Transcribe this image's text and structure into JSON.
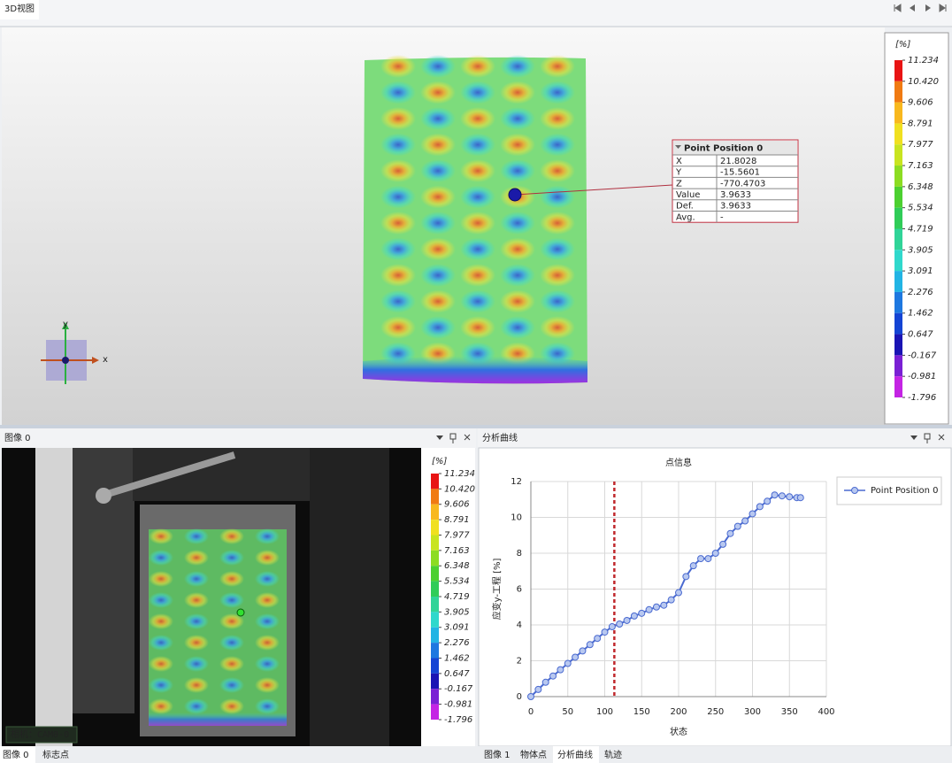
{
  "window": {
    "tab_3d": "3D视图"
  },
  "view3d": {
    "axis_labels": {
      "x": "x",
      "y": "y"
    },
    "probe": {
      "title": "Point Position 0",
      "rows": [
        [
          "X",
          "21.8028"
        ],
        [
          "Y",
          "-15.5601"
        ],
        [
          "Z",
          "-770.4703"
        ],
        [
          "Value",
          "3.9633"
        ],
        [
          "Def.",
          "3.9633"
        ],
        [
          "Avg.",
          "-"
        ]
      ]
    }
  },
  "colorbar": {
    "unit": "[%]",
    "ticks": [
      11.234,
      {
        "value": 10.42,
        "label": "10.420"
      },
      9.606,
      8.791,
      7.977,
      7.163,
      6.348,
      5.534,
      4.719,
      3.905,
      3.091,
      2.276,
      1.462,
      0.647,
      -0.167,
      -0.981,
      -1.796
    ],
    "colors": [
      "#e81414",
      "#f07a12",
      "#f8b81e",
      "#f0e020",
      "#c8e420",
      "#8cdc22",
      "#4cd030",
      "#30cc58",
      "#30d498",
      "#30d8cc",
      "#22b4e4",
      "#1e78e0",
      "#1444d4",
      "#1a14b4",
      "#7a20d4",
      "#c424e4"
    ]
  },
  "image_panel": {
    "title": "图像 0",
    "camera_label": "相机：CAM0-0",
    "tabs": [
      "图像 0",
      "标志点"
    ]
  },
  "chart_panel": {
    "title": "分析曲线",
    "tabs": [
      "图像 1",
      "物体点",
      "分析曲线",
      "轨迹"
    ]
  },
  "chart_data": {
    "type": "line",
    "title": "点信息",
    "x_label": "状态",
    "y_label": "应变y-工程 [%]",
    "x": [
      0,
      10,
      20,
      30,
      40,
      50,
      60,
      70,
      80,
      90,
      100,
      110,
      120,
      130,
      140,
      150,
      160,
      170,
      180,
      190,
      200,
      210,
      220,
      230,
      240,
      250,
      260,
      270,
      280,
      290,
      300,
      310,
      320,
      330,
      340,
      350,
      360,
      365
    ],
    "series": [
      {
        "name": "Point Position 0",
        "color": "#4a6ad0",
        "values": [
          0,
          0.4,
          0.8,
          1.15,
          1.5,
          1.85,
          2.2,
          2.55,
          2.9,
          3.25,
          3.6,
          3.9,
          4.05,
          4.25,
          4.5,
          4.65,
          4.85,
          5.0,
          5.1,
          5.4,
          5.8,
          6.7,
          7.3,
          7.7,
          7.7,
          8.0,
          8.5,
          9.1,
          9.5,
          9.8,
          10.2,
          10.6,
          10.9,
          11.25,
          11.2,
          11.15,
          11.1,
          11.1
        ]
      }
    ],
    "xlim": [
      0,
      400
    ],
    "ylim": [
      0,
      12
    ],
    "xticks": [
      0,
      50,
      100,
      150,
      200,
      250,
      300,
      350,
      400
    ],
    "yticks": [
      0,
      2,
      4,
      6,
      8,
      10,
      12
    ],
    "grid": true,
    "marker_x": 113,
    "marker_color": "#c0282c",
    "legend": "upper right"
  }
}
